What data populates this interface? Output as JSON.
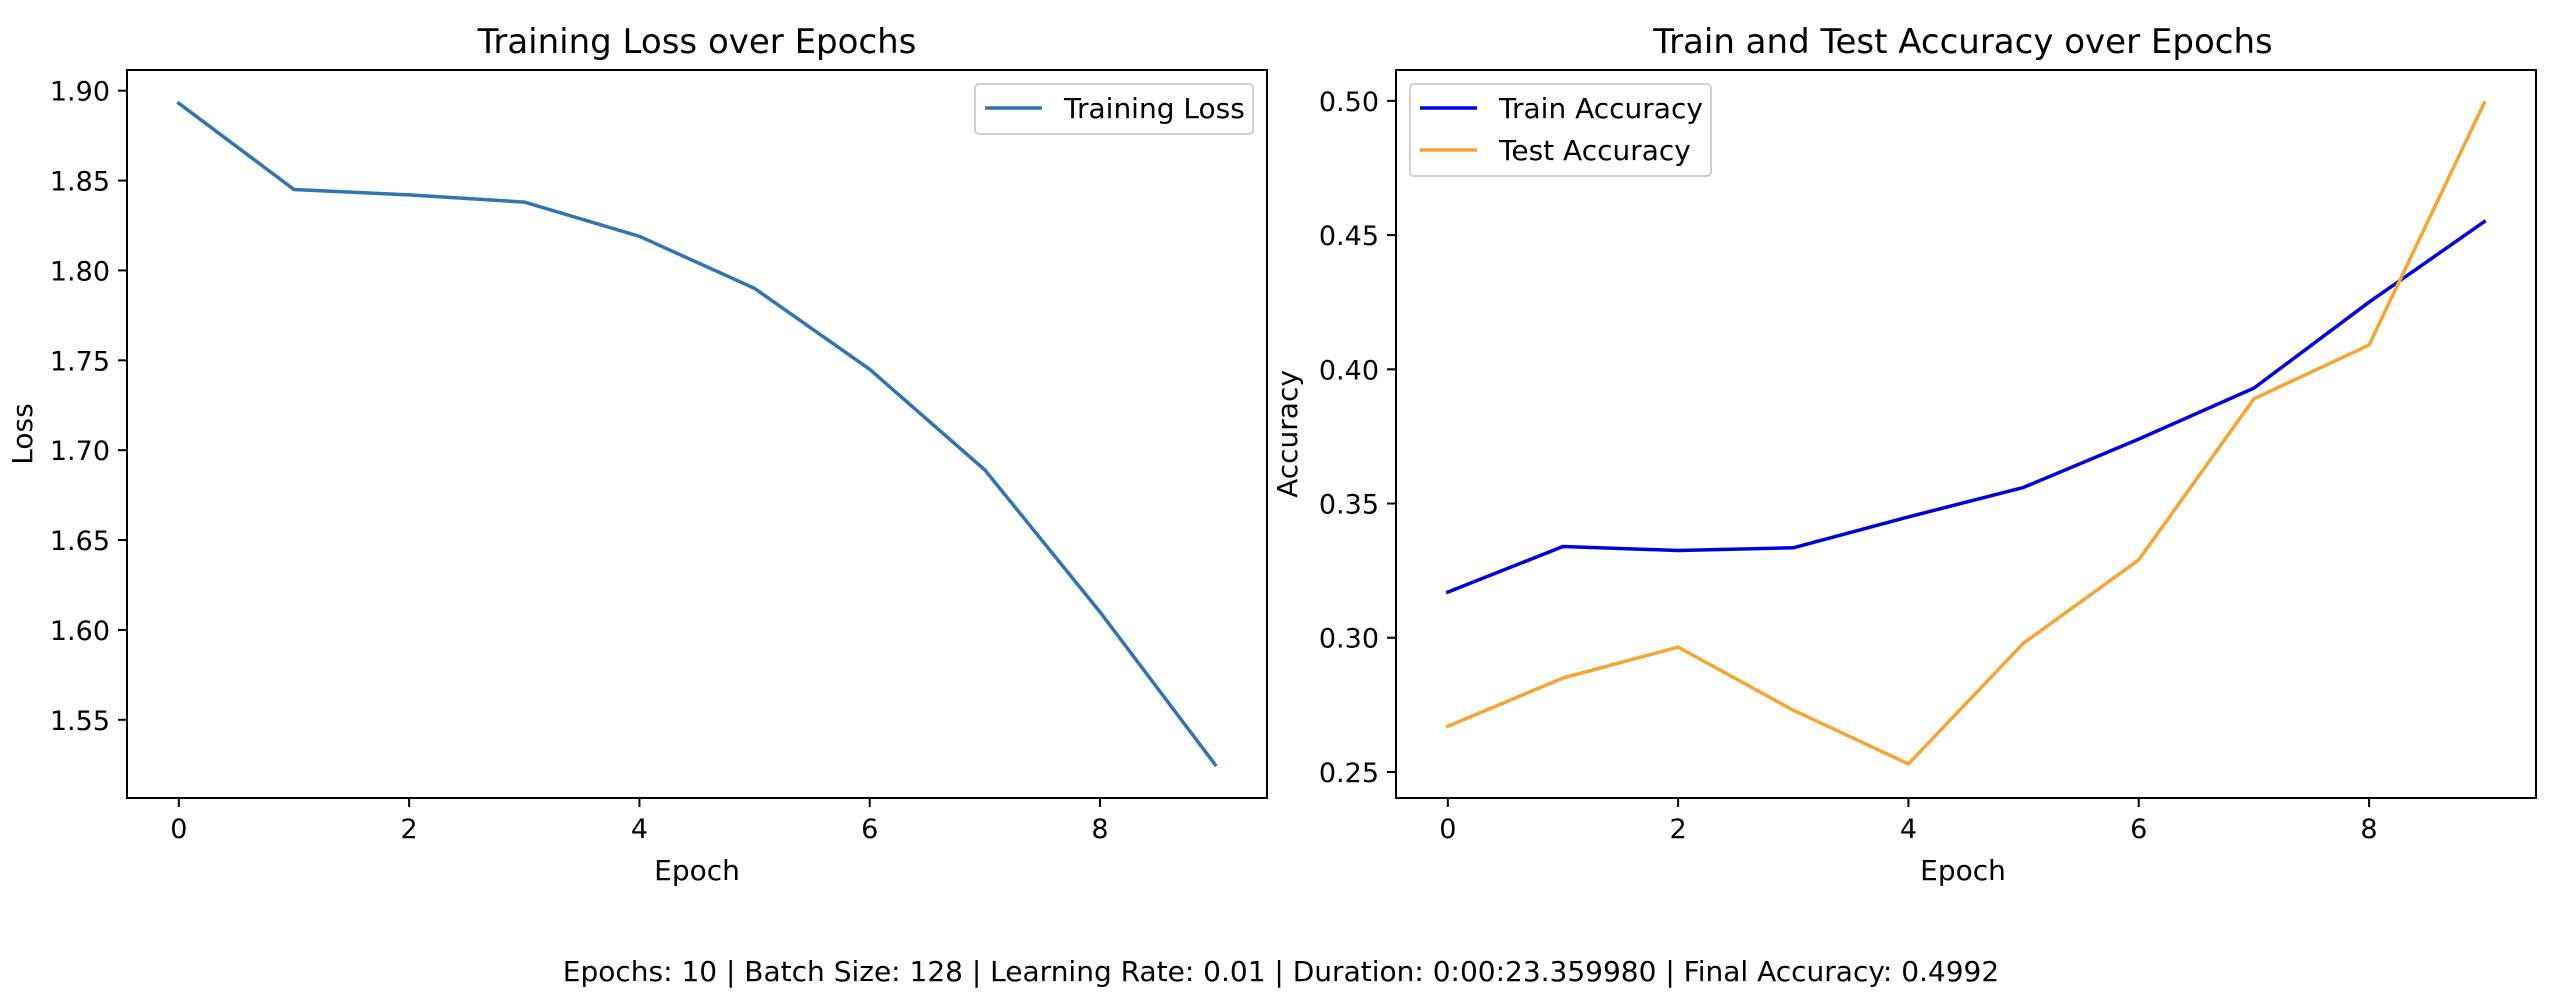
{
  "chart_data": [
    {
      "type": "line",
      "title": "Training Loss over Epochs",
      "xlabel": "Epoch",
      "ylabel": "Loss",
      "x": [
        0,
        1,
        2,
        3,
        4,
        5,
        6,
        7,
        8,
        9
      ],
      "xticks": [
        0,
        2,
        4,
        6,
        8
      ],
      "yticks": [
        1.55,
        1.6,
        1.65,
        1.7,
        1.75,
        1.8,
        1.85,
        1.9
      ],
      "xlim": [
        -0.45,
        9.45
      ],
      "ylim": [
        1.5065,
        1.9115
      ],
      "legend": "top-right",
      "grid": false,
      "series": [
        {
          "name": "Training Loss",
          "color": "#3274b0",
          "values": [
            1.893,
            1.845,
            1.842,
            1.838,
            1.819,
            1.79,
            1.745,
            1.689,
            1.61,
            1.525
          ]
        }
      ]
    },
    {
      "type": "line",
      "title": "Train and Test Accuracy over Epochs",
      "xlabel": "Epoch",
      "ylabel": "Accuracy",
      "x": [
        0,
        1,
        2,
        3,
        4,
        5,
        6,
        7,
        8,
        9
      ],
      "xticks": [
        0,
        2,
        4,
        6,
        8
      ],
      "yticks": [
        0.25,
        0.3,
        0.35,
        0.4,
        0.45,
        0.5
      ],
      "xlim": [
        -0.45,
        9.45
      ],
      "ylim": [
        0.2403,
        0.5115
      ],
      "legend": "top-left",
      "grid": false,
      "series": [
        {
          "name": "Train Accuracy",
          "color": "#0000dd",
          "values": [
            0.317,
            0.334,
            0.3325,
            0.3335,
            0.345,
            0.356,
            0.374,
            0.393,
            0.425,
            0.455
          ]
        },
        {
          "name": "Test Accuracy",
          "color": "#f5a632",
          "values": [
            0.267,
            0.285,
            0.2965,
            0.273,
            0.253,
            0.298,
            0.329,
            0.389,
            0.409,
            0.4992
          ]
        }
      ]
    }
  ],
  "footer": "Epochs: 10 | Batch Size: 128 | Learning Rate: 0.01 | Duration: 0:00:23.359980 | Final Accuracy: 0.4992"
}
